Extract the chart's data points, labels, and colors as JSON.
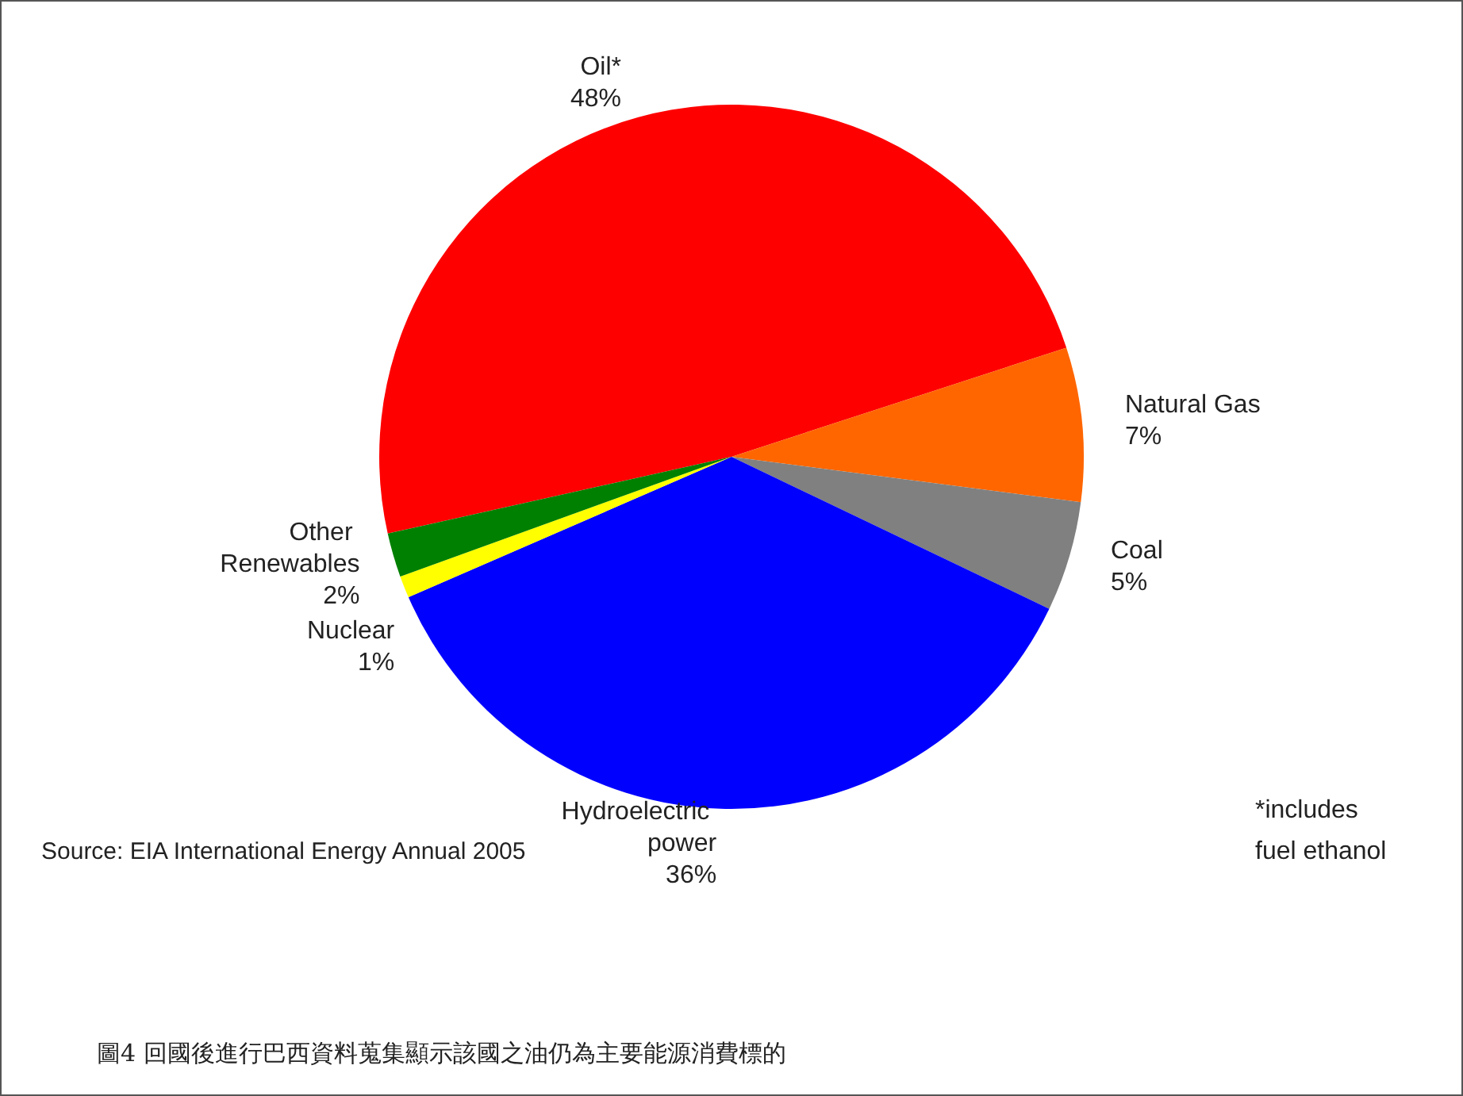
{
  "chart_data": {
    "type": "pie",
    "categories": [
      "Oil*",
      "Natural Gas",
      "Coal",
      "Hydroelectric power",
      "Nuclear",
      "Other Renewables"
    ],
    "values": [
      48,
      7,
      5,
      36,
      1,
      2
    ],
    "value_labels": [
      "48%",
      "7%",
      "5%",
      "36%",
      "1%",
      "2%"
    ],
    "colors": [
      "#ff0000",
      "#ff6600",
      "#808080",
      "#0000ff",
      "#ffff00",
      "#008000"
    ],
    "legend": false,
    "annotations": [
      "Source: EIA International Energy Annual 2005",
      "*includes fuel ethanol",
      "圖4 回國後進行巴西資料蒐集顯示該國之油仍為主要能源消費標的"
    ]
  }
}
